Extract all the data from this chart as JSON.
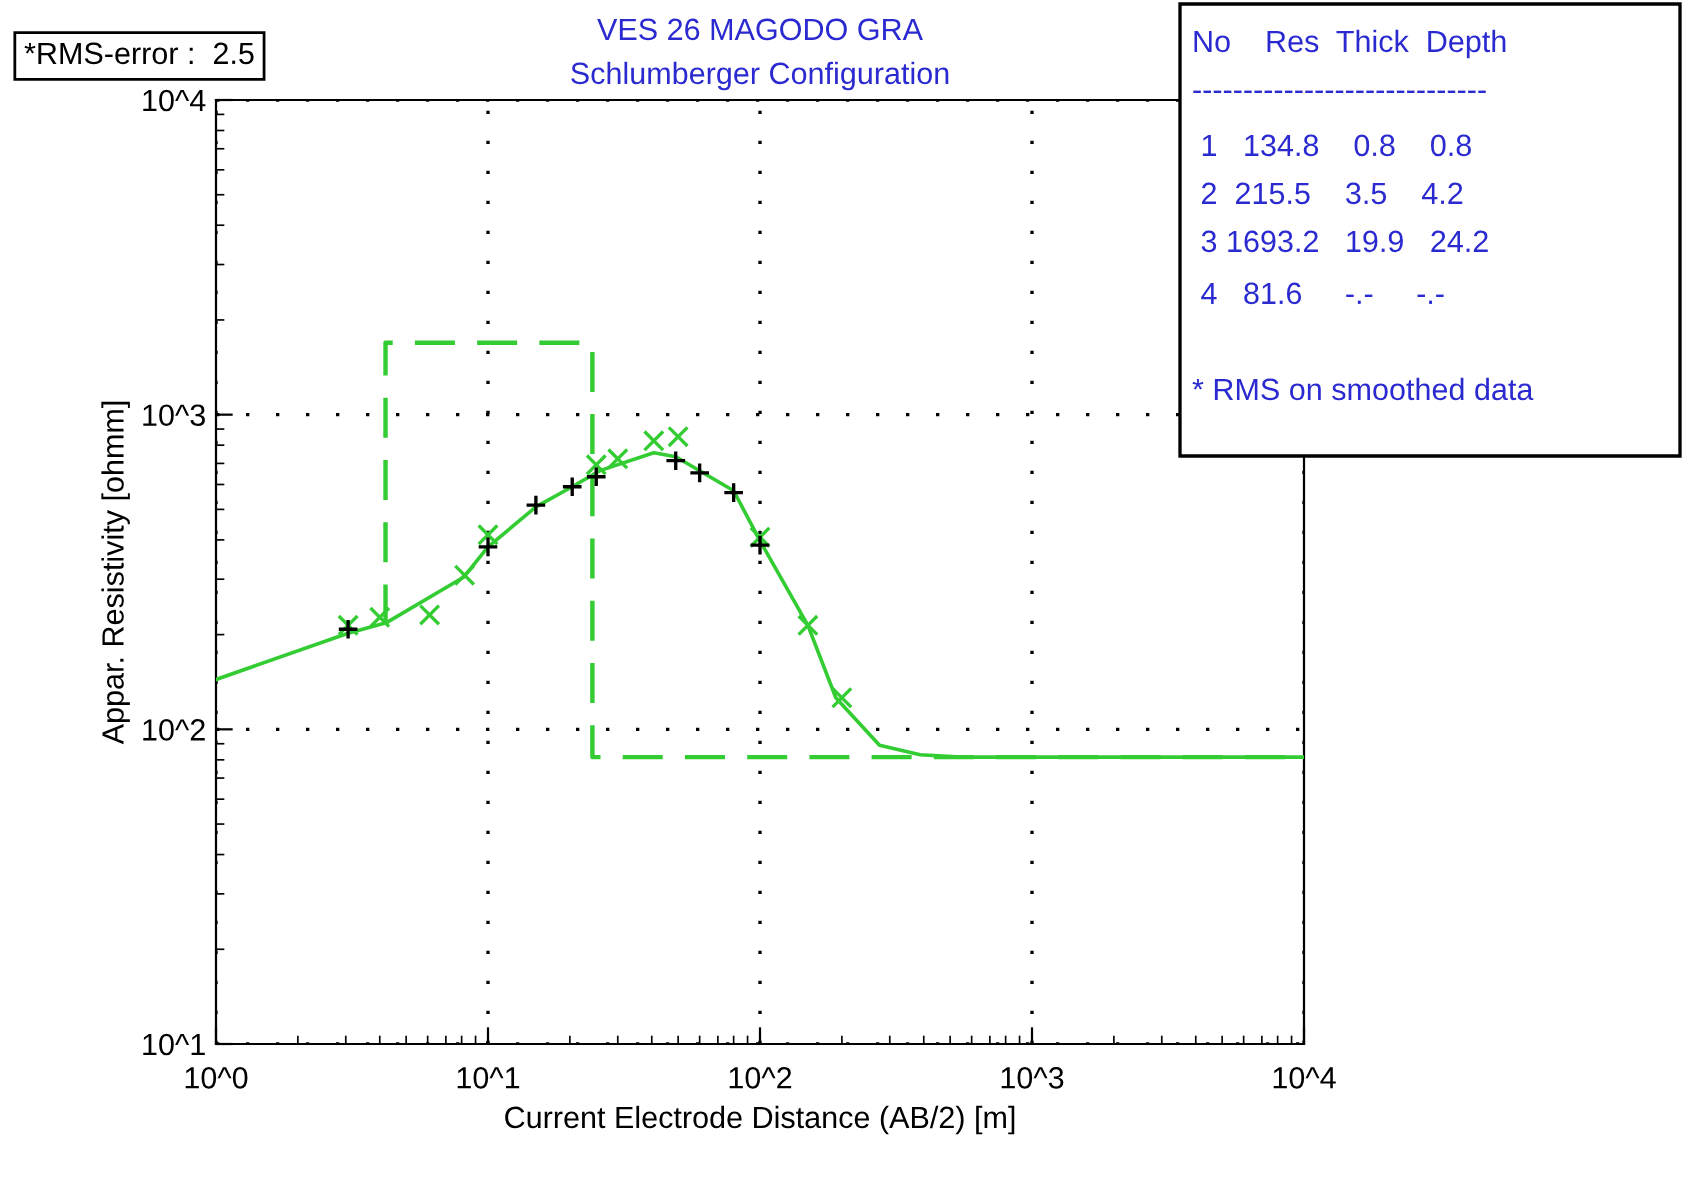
{
  "chart_data": {
    "type": "line",
    "title": "VES 26 MAGODO GRA",
    "subtitle": "Schlumberger Configuration",
    "xlabel": "Current Electrode Distance (AB/2) [m]",
    "ylabel": "Appar. Resistivity [ohmm]",
    "log": "xy",
    "xlim": [
      1,
      10000
    ],
    "ylim": [
      10,
      10000
    ],
    "xticks": [
      {
        "value": 1,
        "label": "10^0"
      },
      {
        "value": 10,
        "label": "10^1"
      },
      {
        "value": 100,
        "label": "10^2"
      },
      {
        "value": 1000,
        "label": "10^3"
      },
      {
        "value": 10000,
        "label": "10^4"
      }
    ],
    "yticks": [
      {
        "value": 10,
        "label": "10^1"
      },
      {
        "value": 100,
        "label": "10^2"
      },
      {
        "value": 1000,
        "label": "10^3"
      },
      {
        "value": 10000,
        "label": "10^4"
      }
    ],
    "grid": true,
    "series": [
      {
        "color": "#33cc33",
        "line_style": "solid",
        "x": [
          1,
          3.06,
          4.22,
          8.16,
          10,
          15,
          20.4,
          25.8,
          40.7,
          49,
          80,
          100,
          150,
          190,
          275,
          388,
          548,
          10000
        ],
        "values": [
          144,
          202,
          218,
          305,
          380,
          509,
          590,
          664,
          757,
          735,
          573,
          397,
          214,
          126,
          89,
          83,
          81.6,
          81.6
        ]
      },
      {
        "color": "#33cc33",
        "line_style": "dashed",
        "x": [
          4.2,
          4.2,
          24.2,
          24.2,
          10000
        ],
        "values": [
          215.5,
          1693.2,
          1693.2,
          81.6,
          81.6
        ]
      },
      {
        "type": "scatter",
        "color": "#33cc33",
        "marker": "x",
        "x": [
          3.06,
          4.0,
          6.1,
          8.2,
          10,
          25,
          30,
          40.7,
          50,
          100,
          150,
          200
        ],
        "values": [
          214,
          227,
          231,
          309,
          415,
          693,
          724,
          826,
          851,
          408,
          214,
          126
        ]
      },
      {
        "type": "scatter",
        "color": "#000000",
        "marker": "cross",
        "x": [
          3.06,
          10,
          15,
          20.4,
          25,
          49,
          60,
          80,
          100
        ],
        "values": [
          208,
          380,
          516,
          590,
          635,
          714,
          653,
          565,
          385
        ]
      }
    ],
    "annotations": [
      "*RMS-error :  2.5",
      "No    Res  Thick  Depth",
      "-----------------------------",
      " 1   134.8    0.8    0.8",
      " 2  215.5    3.5    4.2",
      " 3 1693.2   19.9   24.2",
      " 4   81.6     -.-     -.-",
      "* RMS on smoothed data"
    ]
  }
}
